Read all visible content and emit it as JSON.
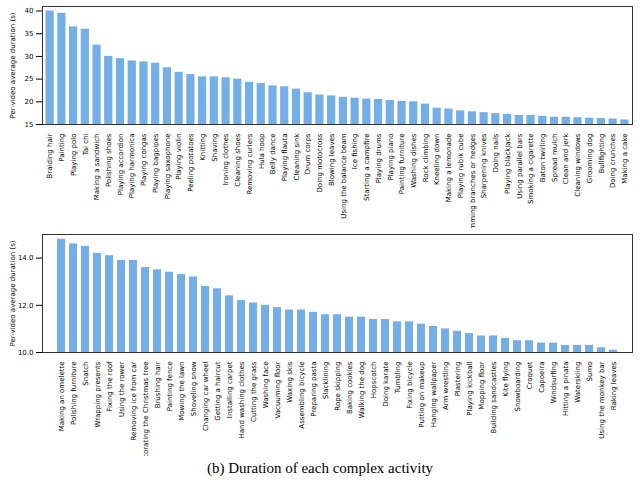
{
  "caption": "(b) Duration of each complex activity",
  "chart_data": [
    {
      "type": "bar",
      "ylabel": "Per-video average duration (s)",
      "color": "#74aee6",
      "categories": [
        "Braiding hair",
        "Painting",
        "Playing polo",
        "Tai chi",
        "Making a sandwich",
        "Polishing shoes",
        "Playing accordion",
        "Playing harmonica",
        "Playing congas",
        "Playing bagpipes",
        "Playing saxophone",
        "Playing violin",
        "Peeling potatoes",
        "Knitting",
        "Shaving",
        "Ironing clothes",
        "Cleaning shoes",
        "Removing curlers",
        "Hula hoop",
        "Belly dance",
        "Playing flauta",
        "Cleaning sink",
        "Drum corps",
        "Doing motocross",
        "Blowing leaves",
        "Using the balance beam",
        "Ice fishing",
        "Starting a campfire",
        "Playing drums",
        "Playing piano",
        "Painting furniture",
        "Washing dishes",
        "Rock climbing",
        "Kneeling down",
        "Making a lemonade",
        "Playing rubik cube",
        "Trimming branches or hedges",
        "Sharpening knives",
        "Doing nails",
        "Playing blackjack",
        "Using parallel bars",
        "Smoking a cigarette",
        "Baton twirling",
        "Spread mulch",
        "Clean and jerk",
        "Cleaning windows",
        "Grooming dog",
        "Bullfighting",
        "Doing crunches",
        "Making a cake"
      ],
      "values": [
        40,
        39.5,
        36.5,
        36,
        32.5,
        30,
        29.5,
        29,
        28.8,
        28.5,
        27.5,
        26.5,
        26,
        25.5,
        25.5,
        25.3,
        25,
        24.3,
        24,
        23.5,
        23.3,
        22.8,
        22,
        21.5,
        21.3,
        21,
        20.8,
        20.6,
        20.5,
        20.3,
        20.1,
        20,
        19.5,
        18.6,
        18.4,
        18,
        17.8,
        17.6,
        17.4,
        17.2,
        17,
        17,
        16.8,
        16.6,
        16.6,
        16.5,
        16.4,
        16.3,
        16.2,
        16
      ],
      "ylim": [
        15,
        41
      ],
      "yticks": [
        15,
        20,
        25,
        30,
        35,
        40
      ],
      "grid": false
    },
    {
      "type": "bar",
      "ylabel": "Per-video average duration (s)",
      "color": "#74aee6",
      "categories": [
        "Making an omelette",
        "Polishing furniture",
        "Snatch",
        "Wrapping presents",
        "Fixing the roof",
        "Using the rower",
        "Removing ice from car",
        "Decorating the Christmas tree",
        "Brushing hair",
        "Painting fence",
        "Mowing the lawn",
        "Shoveling snow",
        "Changing car wheel",
        "Getting a haircut",
        "Installing carpet",
        "Hand washing clothes",
        "Cutting the grass",
        "Washing face",
        "Vacuuming floor",
        "Waxing skis",
        "Assembling bicycle",
        "Preparing pasta",
        "Slacklining",
        "Rope skipping",
        "Baking cookies",
        "Walking the dog",
        "Hopscotch",
        "Doing karate",
        "Tumbling",
        "Fixing bicycle",
        "Putting on makeup",
        "Hanging wallpaper",
        "Arm wrestling",
        "Plastering",
        "Playing kickball",
        "Mopping floor",
        "Building sandcastles",
        "Kite flying",
        "Snowboarding",
        "Croquet",
        "Capoeira",
        "Windsurfing",
        "Hitting a pinata",
        "Waterskiing",
        "Sumo",
        "Using the monkey bar",
        "Raking leaves"
      ],
      "values": [
        14.8,
        14.6,
        14.5,
        14.2,
        14.1,
        13.9,
        13.9,
        13.6,
        13.5,
        13.4,
        13.3,
        13.2,
        12.8,
        12.7,
        12.4,
        12.2,
        12.1,
        12.0,
        11.9,
        11.8,
        11.8,
        11.7,
        11.6,
        11.6,
        11.5,
        11.5,
        11.4,
        11.4,
        11.3,
        11.3,
        11.2,
        11.1,
        11.0,
        10.9,
        10.8,
        10.7,
        10.7,
        10.6,
        10.5,
        10.5,
        10.4,
        10.4,
        10.3,
        10.3,
        10.3,
        10.2,
        10.1
      ],
      "ylim": [
        10,
        15
      ],
      "yticks": [
        10,
        12,
        14
      ],
      "grid": false
    }
  ]
}
